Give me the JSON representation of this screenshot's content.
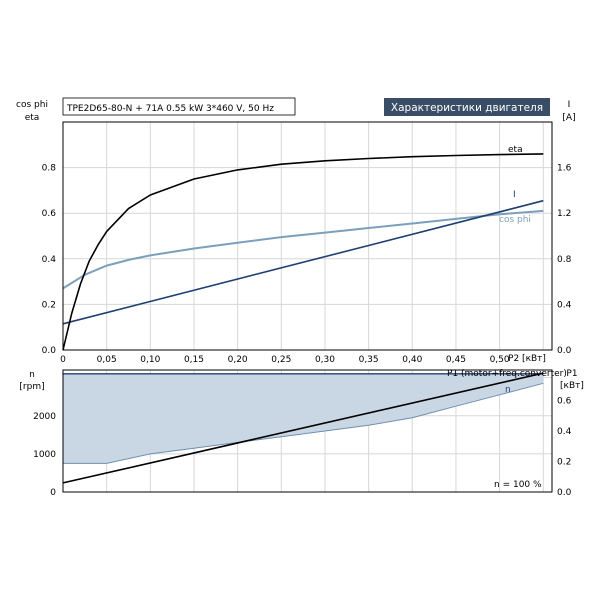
{
  "header": {
    "product": "TPE2D65-80-N + 71A   0.55 kW   3*460 V, 50 Hz",
    "section_title": "Характеристики двигателя"
  },
  "colors": {
    "grid": "#d7d7d7",
    "axis": "#000000",
    "eta": "#000000",
    "current": "#1f3f73",
    "cosphi": "#7c9fba",
    "band_fill": "#c9d6e3",
    "band_edge": "#1f3f73",
    "p1": "#000000",
    "title_bg": "#394d66"
  },
  "chart_data": [
    {
      "type": "line",
      "x": [
        0,
        0.05,
        0.1,
        0.15,
        0.2,
        0.25,
        0.3,
        0.35,
        0.4,
        0.45,
        0.5,
        0.55
      ],
      "xlabel": "P2 [кВт]",
      "xlim": [
        0,
        0.56
      ],
      "x_ticks": [
        "0",
        "0,05",
        "0,10",
        "0,15",
        "0,20",
        "0,25",
        "0,30",
        "0,35",
        "0,40",
        "0,45",
        "0,50"
      ],
      "ylabel_left": [
        "cos phi",
        "eta"
      ],
      "ylim_left": [
        0,
        1.0
      ],
      "y_ticks_left": [
        "0.0",
        "0.2",
        "0.4",
        "0.6",
        "0.8"
      ],
      "ylabel_right": [
        "I",
        "[A]"
      ],
      "ylim_right": [
        0,
        2.0
      ],
      "y_ticks_right": [
        "0.0",
        "0.4",
        "0.8",
        "1.2",
        "1.6"
      ],
      "grid": true,
      "series": [
        {
          "name": "eta",
          "axis": "left",
          "x": [
            0,
            0.01,
            0.02,
            0.03,
            0.04,
            0.05,
            0.075,
            0.1,
            0.15,
            0.2,
            0.25,
            0.3,
            0.35,
            0.4,
            0.45,
            0.5,
            0.55
          ],
          "y": [
            0,
            0.16,
            0.29,
            0.39,
            0.46,
            0.52,
            0.62,
            0.68,
            0.75,
            0.79,
            0.815,
            0.83,
            0.84,
            0.848,
            0.853,
            0.857,
            0.86
          ]
        },
        {
          "name": "I",
          "axis": "right",
          "x": [
            0,
            0.55
          ],
          "y": [
            0.23,
            1.31
          ]
        },
        {
          "name": "cos phi",
          "axis": "left",
          "x": [
            0,
            0.025,
            0.05,
            0.075,
            0.1,
            0.15,
            0.2,
            0.25,
            0.3,
            0.35,
            0.4,
            0.45,
            0.5,
            0.55
          ],
          "y": [
            0.27,
            0.33,
            0.37,
            0.395,
            0.415,
            0.445,
            0.47,
            0.495,
            0.515,
            0.535,
            0.555,
            0.575,
            0.595,
            0.61
          ]
        }
      ]
    },
    {
      "type": "area",
      "x": [
        0,
        0.55
      ],
      "xlim": [
        0,
        0.56
      ],
      "ylabel_left": [
        "n",
        "[rpm]"
      ],
      "ylim_left": [
        0,
        3200
      ],
      "y_ticks_left": [
        "0",
        "1000",
        "2000"
      ],
      "ylabel_right": [
        "P1",
        "[кВт]"
      ],
      "ylim_right": [
        0,
        0.8
      ],
      "y_ticks_right": [
        "0.0",
        "0.2",
        "0.4",
        "0.6"
      ],
      "grid": true,
      "annotations": [
        "P1 (motor+freq.converter)",
        "n = 100 %",
        "n"
      ],
      "series": [
        {
          "name": "n",
          "axis": "left",
          "x": [
            0,
            0.05,
            0.1,
            0.15,
            0.2,
            0.25,
            0.3,
            0.35,
            0.4,
            0.45,
            0.5,
            0.55
          ],
          "y_min": [
            750,
            750,
            1000,
            1150,
            1300,
            1450,
            1600,
            1750,
            1950,
            2250,
            2550,
            2850
          ],
          "y_max": [
            3100,
            3100,
            3100,
            3100,
            3100,
            3100,
            3100,
            3100,
            3100,
            3100,
            3100,
            3100
          ]
        },
        {
          "name": "P1 (motor+freq.converter)",
          "axis": "right",
          "x": [
            0,
            0.55
          ],
          "y": [
            0.06,
            0.78
          ]
        }
      ]
    }
  ]
}
